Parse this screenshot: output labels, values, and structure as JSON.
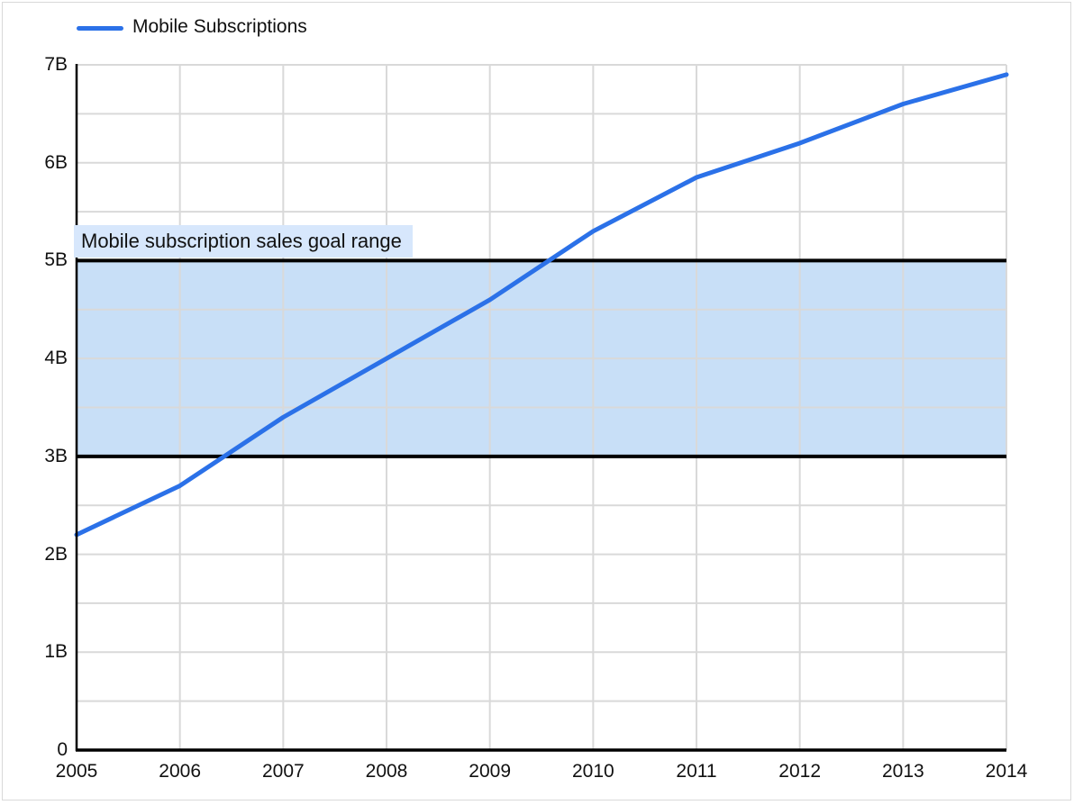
{
  "legend": {
    "label": "Mobile Subscriptions"
  },
  "colors": {
    "line": "#2b71e8",
    "band_fill": "#c8dff7",
    "band_border": "#000000",
    "band_label_bg": "#d7e7fc",
    "gridline": "#d9d9d9",
    "axis": "#000000",
    "frame_border": "#d9d9d9",
    "text": "#111111"
  },
  "chart_data": {
    "type": "line",
    "title": "",
    "xlabel": "",
    "ylabel": "",
    "x": [
      2005,
      2006,
      2007,
      2008,
      2009,
      2010,
      2011,
      2012,
      2013,
      2014
    ],
    "series": [
      {
        "name": "Mobile Subscriptions",
        "values": [
          2.2,
          2.7,
          3.4,
          4.0,
          4.6,
          5.3,
          5.85,
          6.2,
          6.6,
          6.9
        ],
        "unit": "billions"
      }
    ],
    "ylim": [
      0,
      7
    ],
    "y_ticks": [
      {
        "value": 7,
        "label": "7B"
      },
      {
        "value": 6,
        "label": "6B"
      },
      {
        "value": 5,
        "label": "5B"
      },
      {
        "value": 4,
        "label": "4B"
      },
      {
        "value": 3,
        "label": "3B"
      },
      {
        "value": 2,
        "label": "2B"
      },
      {
        "value": 1,
        "label": "1B"
      },
      {
        "value": 0,
        "label": "0"
      }
    ],
    "band": {
      "from": 3,
      "to": 5,
      "label": "Mobile subscription sales goal range"
    },
    "grid": "horizontal every 0.5B, vertical every year, light gray",
    "legend_position": "top-left"
  }
}
